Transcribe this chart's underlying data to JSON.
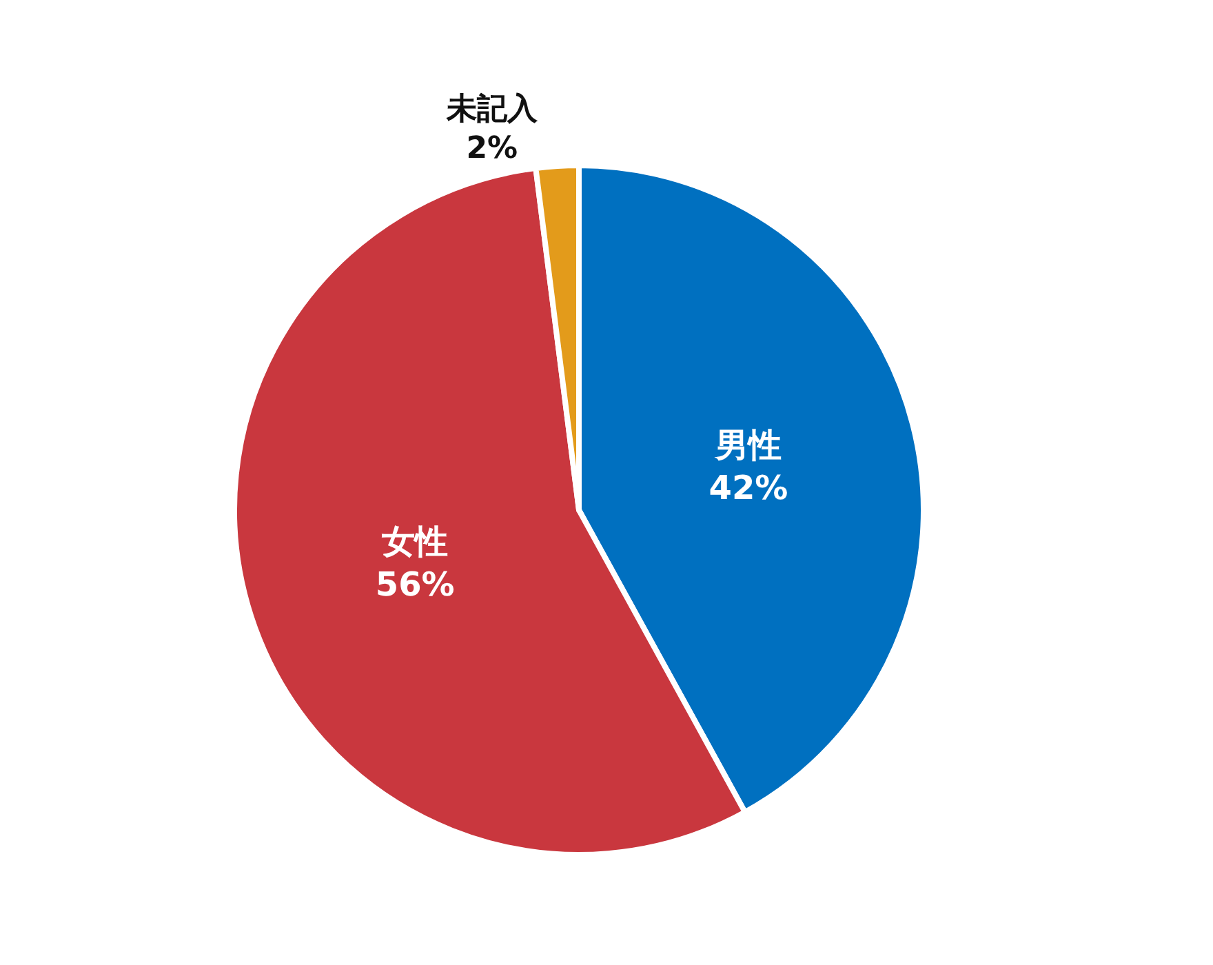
{
  "chart_data": {
    "type": "pie",
    "categories": [
      "男性",
      "女性",
      "未記入"
    ],
    "values": [
      42,
      56,
      2
    ],
    "colors": [
      "#0070c0",
      "#c9373e",
      "#e39b1b"
    ],
    "value_labels": [
      "42%",
      "56%",
      "2%"
    ],
    "legend": false
  }
}
